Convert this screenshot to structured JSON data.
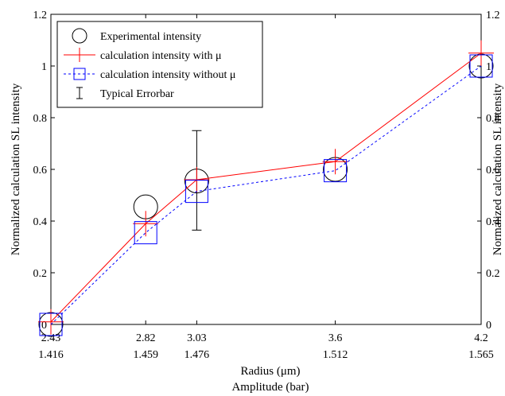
{
  "chart_data": {
    "type": "line",
    "x_categories": [
      2.43,
      2.82,
      3.03,
      3.6,
      4.2
    ],
    "x_tick_labels": [
      "2.43",
      "2.82",
      "3.03",
      "3.6",
      "4.2"
    ],
    "x2_tick_labels": [
      "1.416",
      "1.459",
      "1.476",
      "1.512",
      "1.565"
    ],
    "xlim": [
      2.43,
      4.2
    ],
    "ylim": [
      0,
      1.2
    ],
    "y_ticks": [
      0,
      0.2,
      0.4,
      0.6,
      0.8,
      1,
      1.2
    ],
    "y_tick_labels": [
      "0",
      "0.2",
      "0.4",
      "0.6",
      "0.8",
      "1",
      "1.2"
    ],
    "xlabel": "Radius  (μm)",
    "x2label": "Amplitude (bar)",
    "ylabel": "Normalized calculation SL intensity",
    "y2label": "Normalized calculation SL intensity",
    "legend_position": "top-left",
    "series": [
      {
        "name": "Experimental intensity",
        "marker": "circle",
        "line": "none",
        "color": "#000000",
        "y": [
          0,
          0.455,
          0.555,
          0.6,
          1.0
        ]
      },
      {
        "name": "calculation intensity with μ",
        "marker": "plus",
        "line": "solid",
        "color": "#ff0000",
        "y": [
          0.01,
          0.39,
          0.56,
          0.63,
          1.05
        ]
      },
      {
        "name": "calculation intensity without μ",
        "marker": "square",
        "line": "dashed",
        "color": "#0000ff",
        "y": [
          0,
          0.355,
          0.515,
          0.595,
          1.0
        ]
      }
    ],
    "errorbar": {
      "name": "Typical Errorbar",
      "x": 3.03,
      "y": 0.555,
      "low": 0.365,
      "high": 0.75,
      "color": "#000000"
    }
  }
}
